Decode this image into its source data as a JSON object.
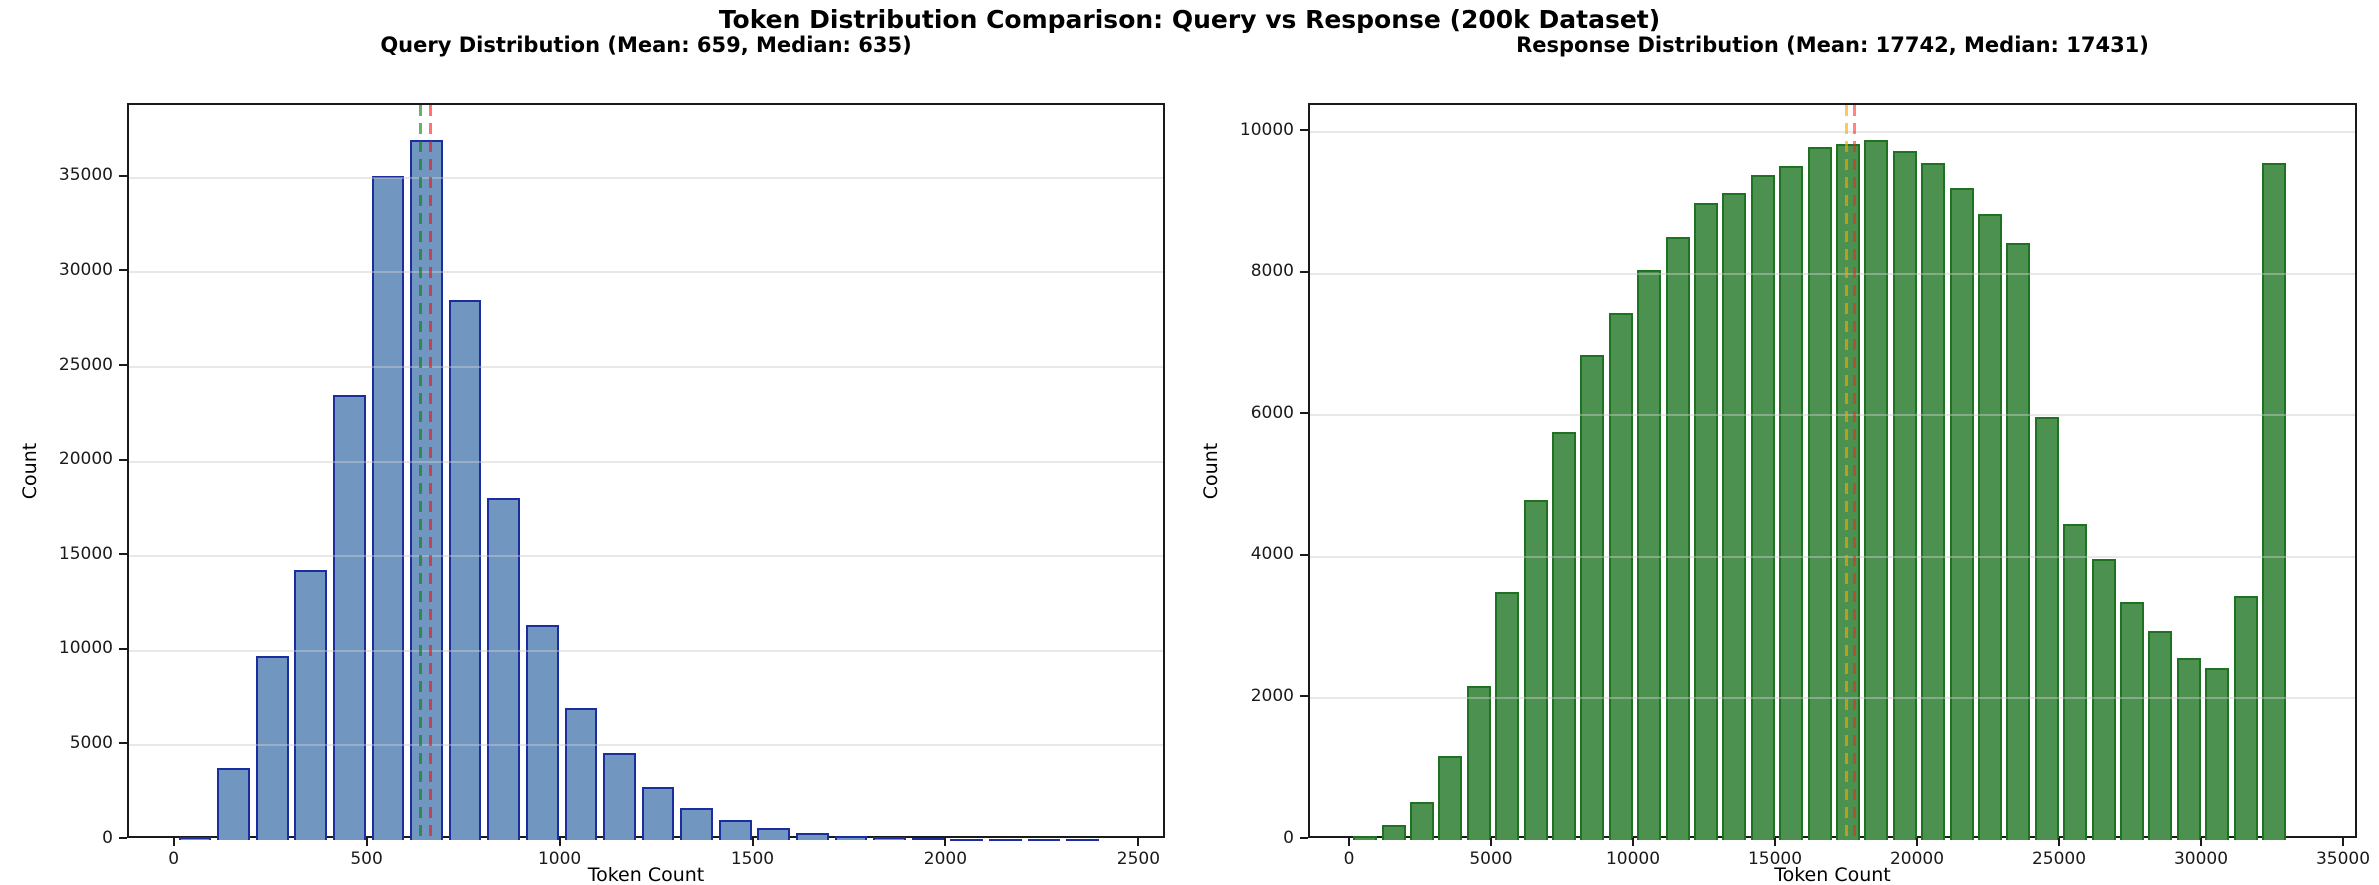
{
  "figure": {
    "title": "Token Distribution Comparison: Query vs Response (200k Dataset)"
  },
  "chart_data": [
    {
      "id": "query",
      "type": "bar",
      "title": "Query Distribution (Mean: 659, Median: 635)",
      "xlabel": "Token Count",
      "ylabel": "Count",
      "bin_width": 100,
      "bin_starts": [
        0,
        100,
        200,
        300,
        400,
        500,
        600,
        700,
        800,
        900,
        1000,
        1100,
        1200,
        1300,
        1400,
        1500,
        1600,
        1700,
        1800,
        1900,
        2000,
        2100,
        2200,
        2300
      ],
      "values": [
        150,
        3800,
        9750,
        14300,
        23550,
        35100,
        37000,
        28550,
        18100,
        11350,
        7000,
        4600,
        2800,
        1700,
        1050,
        650,
        380,
        240,
        140,
        90,
        50,
        25,
        12,
        6
      ],
      "mean": 659,
      "median": 635,
      "xlim": [
        -121,
        2569
      ],
      "ylim": [
        0,
        38850
      ],
      "x_ticks": [
        0,
        500,
        1000,
        1500,
        2000,
        2500
      ],
      "y_ticks": [
        0,
        5000,
        10000,
        15000,
        20000,
        25000,
        30000,
        35000
      ],
      "grid": "y",
      "legend": "none",
      "bar_fill": "#7196C0",
      "bar_edge": "#1C2D9E",
      "mean_line_color": "rgba(255,0,0,0.55)",
      "median_line_color": "rgba(0,128,0,0.6)"
    },
    {
      "id": "response",
      "type": "bar",
      "title": "Response Distribution (Mean: 17742, Median: 17431)",
      "xlabel": "Token Count",
      "ylabel": "Count",
      "bin_width": 1000,
      "bin_starts": [
        0,
        1000,
        2000,
        3000,
        4000,
        5000,
        6000,
        7000,
        8000,
        9000,
        10000,
        11000,
        12000,
        13000,
        14000,
        15000,
        16000,
        17000,
        18000,
        19000,
        20000,
        21000,
        22000,
        23000,
        24000,
        25000,
        26000,
        27000,
        28000,
        29000,
        30000,
        31000,
        32000
      ],
      "values": [
        60,
        210,
        540,
        1190,
        2170,
        3500,
        4800,
        5760,
        6860,
        7450,
        8060,
        8520,
        9000,
        9140,
        9400,
        9520,
        9790,
        9830,
        9890,
        9740,
        9560,
        9210,
        8840,
        8430,
        5980,
        4460,
        3970,
        3360,
        2950,
        2570,
        2430,
        3450,
        9560
      ],
      "mean": 17742,
      "median": 17431,
      "xlim": [
        -1443,
        35493
      ],
      "ylim": [
        0,
        10385
      ],
      "x_ticks": [
        0,
        5000,
        10000,
        15000,
        20000,
        25000,
        30000,
        35000
      ],
      "y_ticks": [
        0,
        2000,
        4000,
        6000,
        8000,
        10000
      ],
      "grid": "y",
      "legend": "none",
      "bar_fill": "#4D9150",
      "bar_edge": "#1E7221",
      "mean_line_color": "rgba(255,30,30,0.55)",
      "median_line_color": "rgba(255,165,0,0.62)"
    }
  ]
}
